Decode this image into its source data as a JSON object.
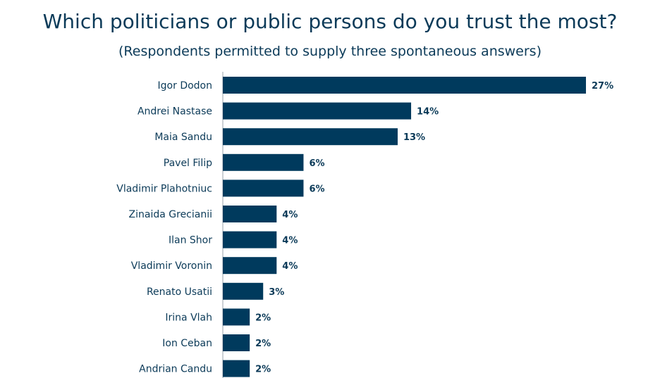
{
  "chart_data": {
    "type": "bar",
    "orientation": "horizontal",
    "title": "Which politicians or public persons do you trust the most?",
    "subtitle": "(Respondents permitted to supply three spontaneous answers)",
    "categories": [
      "Igor Dodon",
      "Andrei Nastase",
      "Maia Sandu",
      "Pavel Filip",
      "Vladimir Plahotniuc",
      "Zinaida Grecianii",
      "Ilan Shor",
      "Vladimir Voronin",
      "Renato Usatii",
      "Irina Vlah",
      "Ion Ceban",
      "Andrian Candu"
    ],
    "values": [
      27,
      14,
      13,
      6,
      6,
      4,
      4,
      4,
      3,
      2,
      2,
      2
    ],
    "value_labels": [
      "27%",
      "14%",
      "13%",
      "6%",
      "6%",
      "4%",
      "4%",
      "4%",
      "3%",
      "2%",
      "2%",
      "2%"
    ],
    "xlim": [
      0,
      27
    ],
    "grid": false,
    "bar_color": "#003a5d",
    "text_color": "#0b3a58"
  }
}
